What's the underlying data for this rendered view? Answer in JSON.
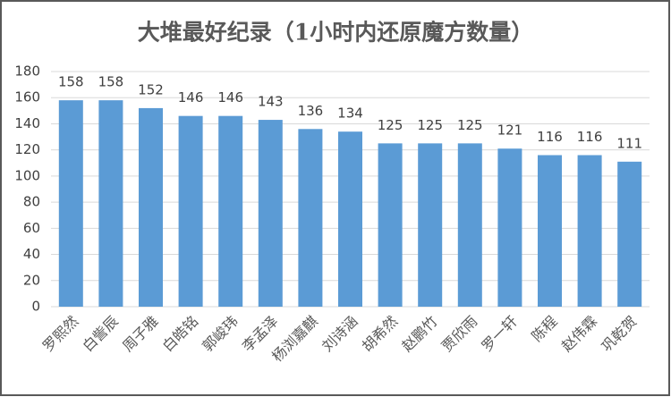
{
  "chart_data": {
    "type": "bar",
    "title": "大堆最好纪录（1小时内还原魔方数量）",
    "categories": [
      "罗熙然",
      "白訾辰",
      "周子雅",
      "白皓铭",
      "郭峻玮",
      "李孟泽",
      "杨浏嘉麒",
      "刘诗涵",
      "胡希然",
      "赵鹏竹",
      "贾欣雨",
      "罗一轩",
      "陈程",
      "赵伟霖",
      "巩乾贺"
    ],
    "values": [
      158,
      158,
      152,
      146,
      146,
      143,
      136,
      134,
      125,
      125,
      125,
      121,
      116,
      116,
      111
    ],
    "color": "#5b9bd5",
    "ylim": [
      0,
      180
    ],
    "yticks": [
      0,
      20,
      40,
      60,
      80,
      100,
      120,
      140,
      160,
      180
    ],
    "grid": true
  }
}
